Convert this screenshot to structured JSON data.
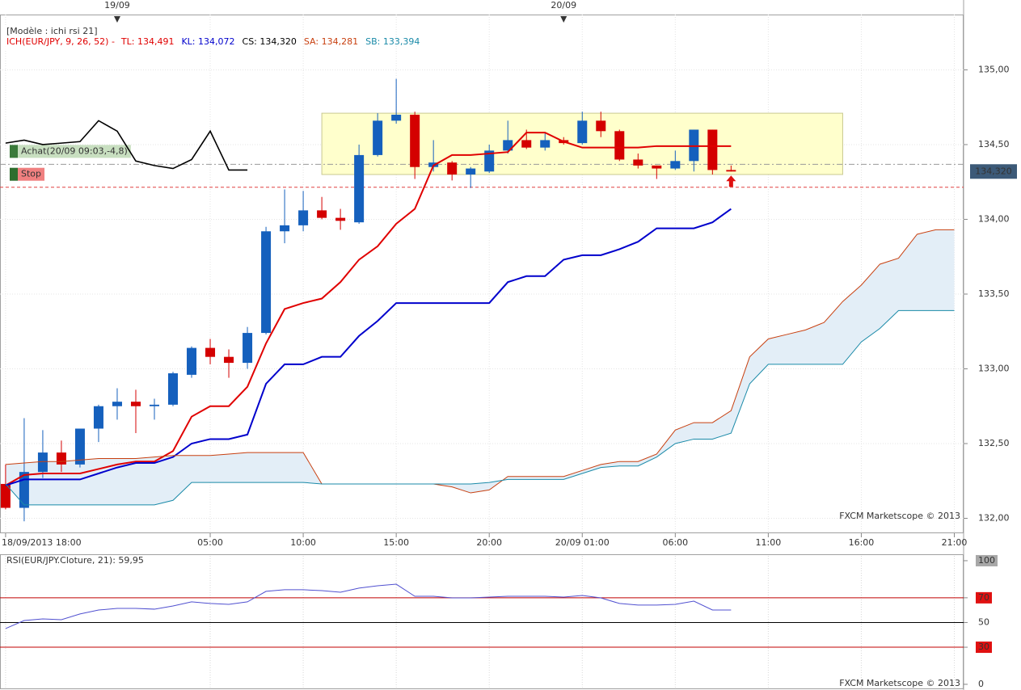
{
  "chart_data": [
    {
      "type": "candlestick",
      "title": "[Modèle : ichi rsi 21]",
      "indicator": "ICH(EUR/JPY, 9, 26, 52) -",
      "credit": "FXCM Marketscope © 2013",
      "xlim": [
        -0.3,
        51.5
      ],
      "xticks": [
        {
          "value": 0,
          "label": "18/09/2013 18:00"
        },
        {
          "value": 11,
          "label": "05:00"
        },
        {
          "value": 16,
          "label": "10:00"
        },
        {
          "value": 21,
          "label": "15:00"
        },
        {
          "value": 26,
          "label": "20:00"
        },
        {
          "value": 31,
          "label": "20/09 01:00"
        },
        {
          "value": 36,
          "label": "06:00"
        },
        {
          "value": 41,
          "label": "11:00"
        },
        {
          "value": 46,
          "label": "16:00"
        },
        {
          "value": 51,
          "label": "21:00"
        }
      ],
      "top_ticks": [
        {
          "value": 6,
          "label": "19/09"
        },
        {
          "value": 30,
          "label": "20/09"
        }
      ],
      "ylim": [
        131.9,
        135.37
      ],
      "yticks": [
        {
          "value": 132,
          "label": "132,00"
        },
        {
          "value": 132.5,
          "label": "132,50"
        },
        {
          "value": 133,
          "label": "133,00"
        },
        {
          "value": 133.5,
          "label": "133,50"
        },
        {
          "value": 134,
          "label": "134,00"
        },
        {
          "value": 134.5,
          "label": "134,50"
        },
        {
          "value": 135,
          "label": "135,00"
        }
      ],
      "grid": true,
      "up_color": "#1560bd",
      "down_color": "#d40000",
      "x": [
        0,
        1,
        2,
        3,
        4,
        5,
        6,
        7,
        8,
        9,
        10,
        11,
        12,
        13,
        14,
        15,
        16,
        17,
        18,
        19,
        20,
        21,
        22,
        23,
        24,
        25,
        26,
        27,
        28,
        29,
        30,
        31,
        32,
        33,
        34,
        35,
        36,
        37,
        38,
        39
      ],
      "open": [
        132.23,
        132.07,
        132.31,
        132.44,
        132.36,
        132.6,
        132.75,
        132.78,
        132.75,
        132.76,
        132.96,
        133.14,
        133.08,
        133.04,
        133.24,
        133.92,
        133.96,
        134.06,
        134.01,
        133.98,
        134.43,
        134.66,
        134.7,
        134.35,
        134.38,
        134.3,
        134.32,
        134.46,
        134.53,
        134.48,
        134.53,
        134.51,
        134.66,
        134.59,
        134.4,
        134.36,
        134.34,
        134.39,
        134.6,
        134.33
      ],
      "high": [
        132.36,
        132.67,
        132.59,
        132.52,
        132.6,
        132.76,
        132.87,
        132.86,
        132.8,
        132.98,
        133.15,
        133.2,
        133.13,
        133.28,
        133.95,
        134.2,
        134.19,
        134.15,
        134.07,
        134.5,
        134.71,
        134.94,
        134.72,
        134.53,
        134.39,
        134.35,
        134.5,
        134.66,
        134.6,
        134.58,
        134.55,
        134.72,
        134.72,
        134.6,
        134.44,
        134.36,
        134.46,
        134.6,
        134.6,
        134.36
      ],
      "low": [
        132.06,
        131.98,
        132.27,
        132.31,
        132.34,
        132.51,
        132.66,
        132.57,
        132.66,
        132.75,
        132.94,
        133.03,
        132.94,
        133.0,
        133.23,
        133.84,
        133.92,
        134.0,
        133.93,
        133.97,
        134.42,
        134.64,
        134.27,
        134.32,
        134.26,
        134.21,
        134.31,
        134.44,
        134.47,
        134.46,
        134.5,
        134.5,
        134.55,
        134.39,
        134.34,
        134.27,
        134.33,
        134.32,
        134.3,
        134.32
      ],
      "close": [
        132.07,
        132.31,
        132.44,
        132.36,
        132.6,
        132.75,
        132.78,
        132.75,
        132.76,
        132.97,
        133.14,
        133.08,
        133.04,
        133.24,
        133.92,
        133.96,
        134.06,
        134.01,
        133.99,
        134.43,
        134.66,
        134.7,
        134.35,
        134.38,
        134.3,
        134.34,
        134.46,
        134.53,
        134.48,
        134.53,
        134.51,
        134.66,
        134.59,
        134.4,
        134.36,
        134.34,
        134.39,
        134.6,
        134.33,
        134.32
      ],
      "lines": [
        {
          "legend": "TL: 134,491",
          "color": "#e00000",
          "width": 2,
          "x": [
            0,
            1,
            2,
            3,
            4,
            5,
            6,
            7,
            8,
            9,
            10,
            11,
            12,
            13,
            14,
            15,
            16,
            17,
            18,
            19,
            20,
            21,
            22,
            23,
            24,
            25,
            26,
            27,
            28,
            29,
            30,
            31,
            32,
            33,
            34,
            35,
            36,
            37,
            38,
            39
          ],
          "values": [
            132.22,
            132.29,
            132.3,
            132.3,
            132.3,
            132.33,
            132.36,
            132.38,
            132.38,
            132.45,
            132.68,
            132.75,
            132.75,
            132.88,
            133.17,
            133.4,
            133.44,
            133.47,
            133.58,
            133.73,
            133.82,
            133.97,
            134.07,
            134.36,
            134.43,
            134.43,
            134.44,
            134.45,
            134.58,
            134.58,
            134.52,
            134.48,
            134.48,
            134.48,
            134.48,
            134.49,
            134.49,
            134.49,
            134.49,
            134.49
          ]
        },
        {
          "legend": "KL: 134,072",
          "color": "#0000cc",
          "width": 2,
          "x": [
            0,
            1,
            2,
            3,
            4,
            5,
            6,
            7,
            8,
            9,
            10,
            11,
            12,
            13,
            14,
            15,
            16,
            17,
            18,
            19,
            20,
            21,
            22,
            23,
            24,
            25,
            26,
            27,
            28,
            29,
            30,
            31,
            32,
            33,
            34,
            35,
            36,
            37,
            38,
            39
          ],
          "values": [
            132.22,
            132.26,
            132.26,
            132.26,
            132.26,
            132.3,
            132.34,
            132.37,
            132.37,
            132.41,
            132.5,
            132.53,
            132.53,
            132.56,
            132.9,
            133.03,
            133.03,
            133.08,
            133.08,
            133.22,
            133.32,
            133.44,
            133.44,
            133.44,
            133.44,
            133.44,
            133.44,
            133.58,
            133.62,
            133.62,
            133.73,
            133.76,
            133.76,
            133.8,
            133.85,
            133.94,
            133.94,
            133.94,
            133.98,
            134.07
          ]
        },
        {
          "legend": "CS: 134,320",
          "color": "#000000",
          "width": 1.6,
          "x": [
            0,
            1,
            2,
            3,
            4,
            5,
            6,
            7,
            8,
            9,
            10,
            11,
            12,
            13
          ],
          "values": [
            134.51,
            134.53,
            134.5,
            134.51,
            134.52,
            134.66,
            134.59,
            134.39,
            134.36,
            134.34,
            134.4,
            134.59,
            134.33,
            134.33
          ]
        },
        {
          "legend": "SA: 134,281",
          "color": "#c84010",
          "width": 1,
          "x": [
            0,
            1,
            2,
            3,
            4,
            5,
            6,
            7,
            8,
            9,
            10,
            11,
            12,
            13,
            14,
            15,
            16,
            17,
            18,
            19,
            20,
            21,
            22,
            23,
            24,
            25,
            26,
            27,
            28,
            29,
            30,
            31,
            32,
            33,
            34,
            35,
            36,
            37,
            38,
            39,
            40,
            41,
            42,
            43,
            44,
            45,
            46,
            47,
            48,
            49,
            50,
            51
          ],
          "values": [
            132.36,
            132.37,
            132.38,
            132.38,
            132.39,
            132.4,
            132.4,
            132.4,
            132.41,
            132.42,
            132.42,
            132.42,
            132.43,
            132.44,
            132.44,
            132.44,
            132.44,
            132.23,
            132.23,
            132.23,
            132.23,
            132.23,
            132.23,
            132.23,
            132.21,
            132.17,
            132.19,
            132.28,
            132.28,
            132.28,
            132.28,
            132.32,
            132.36,
            132.38,
            132.38,
            132.43,
            132.59,
            132.64,
            132.64,
            132.72,
            133.08,
            133.2,
            133.23,
            133.26,
            133.31,
            133.45,
            133.56,
            133.7,
            133.74,
            133.9,
            133.93,
            133.93
          ]
        },
        {
          "legend": "SB: 133,394",
          "color": "#1a8aa8",
          "width": 1,
          "x": [
            0,
            1,
            2,
            3,
            4,
            5,
            6,
            7,
            8,
            9,
            10,
            11,
            12,
            13,
            14,
            15,
            16,
            17,
            18,
            19,
            20,
            21,
            22,
            23,
            24,
            25,
            26,
            27,
            28,
            29,
            30,
            31,
            32,
            33,
            34,
            35,
            36,
            37,
            38,
            39,
            40,
            41,
            42,
            43,
            44,
            45,
            46,
            47,
            48,
            49,
            50,
            51
          ],
          "values": [
            132.23,
            132.09,
            132.09,
            132.09,
            132.09,
            132.09,
            132.09,
            132.09,
            132.09,
            132.12,
            132.24,
            132.24,
            132.24,
            132.24,
            132.24,
            132.24,
            132.24,
            132.23,
            132.23,
            132.23,
            132.23,
            132.23,
            132.23,
            132.23,
            132.23,
            132.23,
            132.24,
            132.26,
            132.26,
            132.26,
            132.26,
            132.3,
            132.34,
            132.35,
            132.35,
            132.41,
            132.5,
            132.53,
            132.53,
            132.57,
            132.9,
            133.03,
            133.03,
            133.03,
            133.03,
            133.03,
            133.18,
            133.27,
            133.39,
            133.39,
            133.39,
            133.39
          ]
        }
      ],
      "cloud_color": "#e3eef7",
      "zone": {
        "x": [
          17,
          45
        ],
        "y": [
          134.3,
          134.71
        ],
        "color": "#ffffcc"
      },
      "orders": [
        {
          "label": "Achat(20/09 09:03,-4,8)",
          "value": 134.368,
          "color": "#999999",
          "dash": "7 3 2 3",
          "tag_color": "#3a7a3a",
          "label_bg": "#c8dfc0",
          "label_color": "#777777"
        },
        {
          "label": "Stop",
          "value": 134.215,
          "color": "#e04040",
          "dash": "4 3",
          "tag_color": "#2e6e2e",
          "label_bg": "#f08080",
          "label_color": "#803030"
        }
      ],
      "last": {
        "value": 134.32,
        "label": "134,320",
        "color": "#3c5a78"
      },
      "signal": {
        "x": 39,
        "value": 134.25,
        "color": "#e01010"
      }
    },
    {
      "type": "line",
      "title": "RSI(EUR/JPY.Cloture, 21): 59,95",
      "credit": "FXCM Marketscope © 2013",
      "color": "#5050d0",
      "x": [
        0,
        1,
        2,
        3,
        4,
        5,
        6,
        7,
        8,
        9,
        10,
        11,
        12,
        13,
        14,
        15,
        16,
        17,
        18,
        19,
        20,
        21,
        22,
        23,
        24,
        25,
        26,
        27,
        28,
        29,
        30,
        31,
        32,
        33,
        34,
        35,
        36,
        37,
        38,
        39
      ],
      "values": [
        45.1,
        51.6,
        52.9,
        52.3,
        56.9,
        60.1,
        61.4,
        61.4,
        60.8,
        63.4,
        66.7,
        65.4,
        64.7,
        66.7,
        75.2,
        76.5,
        76.5,
        75.8,
        74.5,
        77.8,
        79.7,
        81.0,
        71.2,
        71.2,
        69.9,
        69.9,
        70.6,
        71.2,
        71.2,
        71.2,
        70.6,
        71.9,
        69.9,
        65.4,
        64.1,
        64.1,
        64.7,
        67.3,
        60.1,
        60.1
      ],
      "ylim": [
        -3.3,
        103.9
      ],
      "yticks": [
        100,
        70,
        50,
        30,
        0
      ],
      "ytick_backgrounds": [
        "#a8a8a8",
        "#e01010",
        "none",
        "#e01010",
        "none"
      ],
      "hlines": [
        {
          "value": 70,
          "color": "#c00000"
        },
        {
          "value": 50,
          "color": "#000000"
        },
        {
          "value": 30,
          "color": "#c00000"
        }
      ]
    }
  ]
}
